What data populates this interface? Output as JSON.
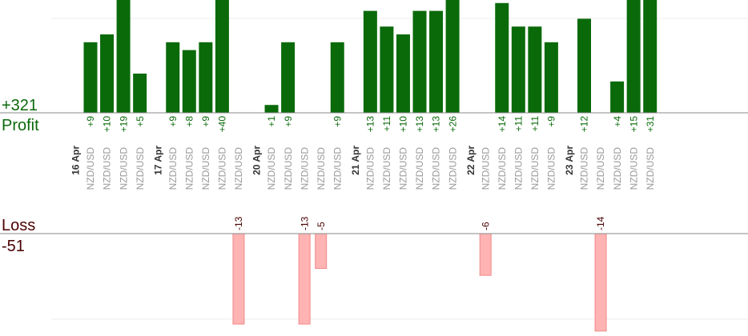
{
  "chart_data": {
    "type": "bar",
    "profit_label": "Profit",
    "profit_total": "+321",
    "loss_label": "Loss",
    "loss_total": "-51",
    "colors": {
      "profit_bar": "#0a6a0a",
      "loss_bar": "#ffb3b3",
      "profit_text": "#0a6a0a",
      "loss_text": "#4a0000",
      "pair_text": "#999999",
      "axis": "#888888",
      "grid": "#eeeeee"
    },
    "groups": [
      {
        "date": "16 Apr",
        "trades": [
          {
            "pair": "NZD/USD",
            "value": 9
          },
          {
            "pair": "NZD/USD",
            "value": 10
          },
          {
            "pair": "NZD/USD",
            "value": 19
          },
          {
            "pair": "NZD/USD",
            "value": 5
          }
        ]
      },
      {
        "date": "17 Apr",
        "trades": [
          {
            "pair": "NZD/USD",
            "value": 9
          },
          {
            "pair": "NZD/USD",
            "value": 8
          },
          {
            "pair": "NZD/USD",
            "value": 9
          },
          {
            "pair": "NZD/USD",
            "value": 40
          },
          {
            "pair": "NZD/USD",
            "value": -13
          }
        ]
      },
      {
        "date": "20 Apr",
        "trades": [
          {
            "pair": "NZD/USD",
            "value": 1
          },
          {
            "pair": "NZD/USD",
            "value": 9
          },
          {
            "pair": "NZD/USD",
            "value": -13
          },
          {
            "pair": "NZD/USD",
            "value": -5
          },
          {
            "pair": "NZD/USD",
            "value": 9
          }
        ]
      },
      {
        "date": "21 Apr",
        "trades": [
          {
            "pair": "NZD/USD",
            "value": 13
          },
          {
            "pair": "NZD/USD",
            "value": 11
          },
          {
            "pair": "NZD/USD",
            "value": 10
          },
          {
            "pair": "NZD/USD",
            "value": 13
          },
          {
            "pair": "NZD/USD",
            "value": 13
          },
          {
            "pair": "NZD/USD",
            "value": 26
          }
        ]
      },
      {
        "date": "22 Apr",
        "trades": [
          {
            "pair": "NZD/USD",
            "value": -6
          },
          {
            "pair": "NZD/USD",
            "value": 14
          },
          {
            "pair": "NZD/USD",
            "value": 11
          },
          {
            "pair": "NZD/USD",
            "value": 11
          },
          {
            "pair": "NZD/USD",
            "value": 9
          }
        ]
      },
      {
        "date": "23 Apr",
        "trades": [
          {
            "pair": "NZD/USD",
            "value": 12
          },
          {
            "pair": "NZD/USD",
            "value": -14
          },
          {
            "pair": "NZD/USD",
            "value": 4
          },
          {
            "pair": "NZD/USD",
            "value": 15
          },
          {
            "pair": "NZD/USD",
            "value": 31
          }
        ]
      }
    ]
  }
}
